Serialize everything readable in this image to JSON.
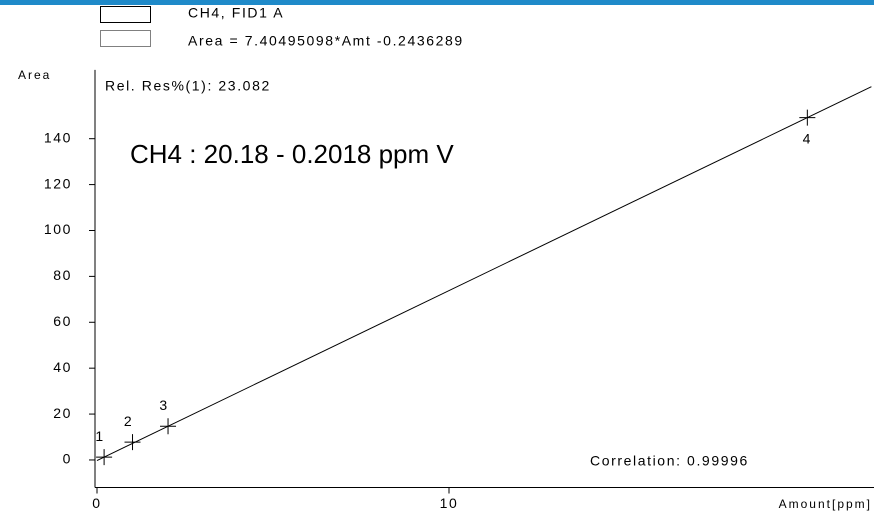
{
  "chart_data": {
    "type": "scatter",
    "ylabel": "Area",
    "xlabel": "Amount[ppm]",
    "annotations": [
      "Rel. Res%(1): 23.082",
      "CH4 : 20.18 - 0.2018 ppm V",
      "Correlation: 0.99996"
    ],
    "xlim": [
      0,
      22
    ],
    "ylim": [
      -12,
      170
    ],
    "xticks": [
      0,
      10
    ],
    "yticks": [
      0,
      20,
      40,
      60,
      80,
      100,
      120,
      140
    ],
    "series": [
      {
        "name": "CH4, FID1 A",
        "color": "#000000",
        "x": [
          0.2018,
          1.009,
          2.018,
          20.18
        ],
        "values": [
          1.25,
          7.8,
          14.7,
          149.2
        ],
        "labels": [
          "1",
          "2",
          "3",
          "4"
        ]
      },
      {
        "name": "Area = 7.40495098*Amt -0.2436289",
        "color": "#000000",
        "x": [
          0,
          22
        ],
        "values": [
          -0.2436289,
          162.6653
        ]
      }
    ]
  }
}
